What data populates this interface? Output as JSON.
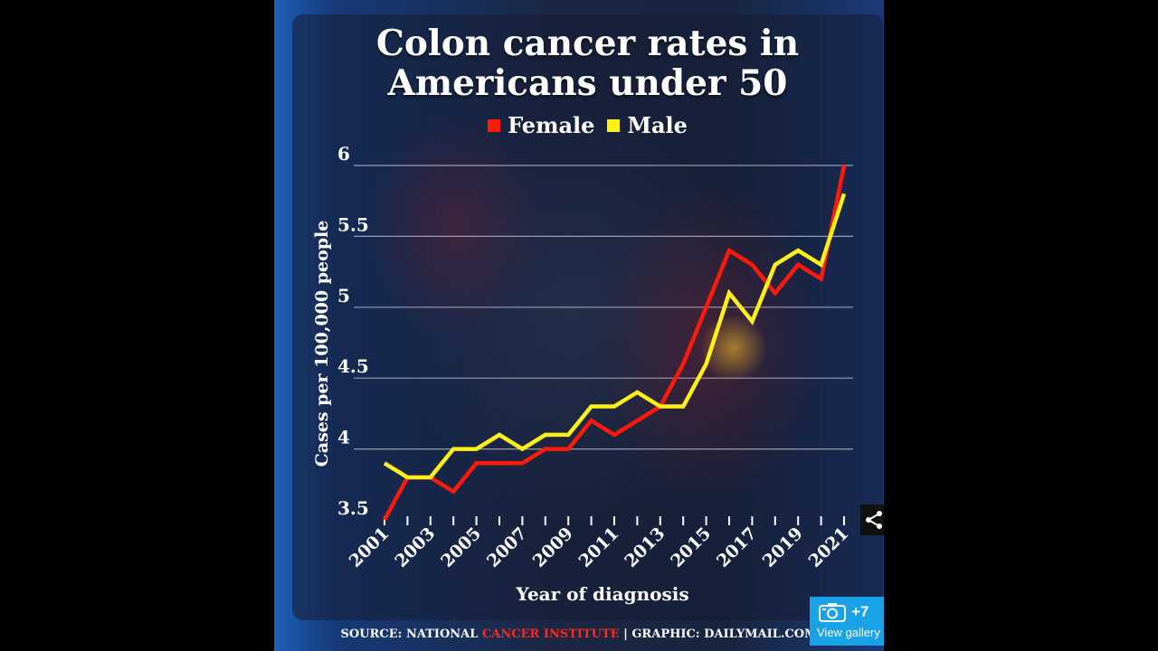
{
  "chart_data": {
    "type": "line",
    "title": "Colon cancer rates in Americans under 50",
    "xlabel": "Year of diagnosis",
    "ylabel": "Cases per 100,000 people",
    "x": [
      2001,
      2002,
      2003,
      2004,
      2005,
      2006,
      2007,
      2008,
      2009,
      2010,
      2011,
      2012,
      2013,
      2014,
      2015,
      2016,
      2017,
      2018,
      2019,
      2020,
      2021
    ],
    "x_tick_labels": [
      "2001",
      "2003",
      "2005",
      "2007",
      "2009",
      "2011",
      "2013",
      "2015",
      "2017",
      "2019",
      "2021"
    ],
    "x_ticks": [
      2001,
      2003,
      2005,
      2007,
      2009,
      2011,
      2013,
      2015,
      2017,
      2019,
      2021
    ],
    "y_ticks": [
      3.5,
      4,
      4.5,
      5,
      5.5,
      6
    ],
    "y_tick_labels": [
      "3.5",
      "4",
      "4.5",
      "5",
      "5.5",
      "6"
    ],
    "ylim": [
      3.5,
      6
    ],
    "grid": true,
    "legend_position": "top-center",
    "series": [
      {
        "name": "Female",
        "color": "#ff1a0a",
        "values": [
          3.5,
          3.8,
          3.8,
          3.7,
          3.9,
          3.9,
          3.9,
          4.0,
          4.0,
          4.2,
          4.1,
          4.2,
          4.3,
          4.6,
          5.0,
          5.4,
          5.3,
          5.1,
          5.3,
          5.2,
          6.0
        ]
      },
      {
        "name": "Male",
        "color": "#ffef1a",
        "values": [
          3.9,
          3.8,
          3.8,
          4.0,
          4.0,
          4.1,
          4.0,
          4.1,
          4.1,
          4.3,
          4.3,
          4.4,
          4.3,
          4.3,
          4.6,
          5.1,
          4.9,
          5.3,
          5.4,
          5.3,
          5.8
        ]
      }
    ]
  },
  "source": {
    "prefix": "SOURCE: NATIONAL ",
    "highlight": "CANCER INSTITUTE",
    "suffix": " | GRAPHIC: DAILYMAIL.COM"
  },
  "gallery": {
    "count": "+7",
    "label": "View gallery"
  },
  "icons": {
    "share": "share-icon",
    "camera": "camera-icon"
  }
}
